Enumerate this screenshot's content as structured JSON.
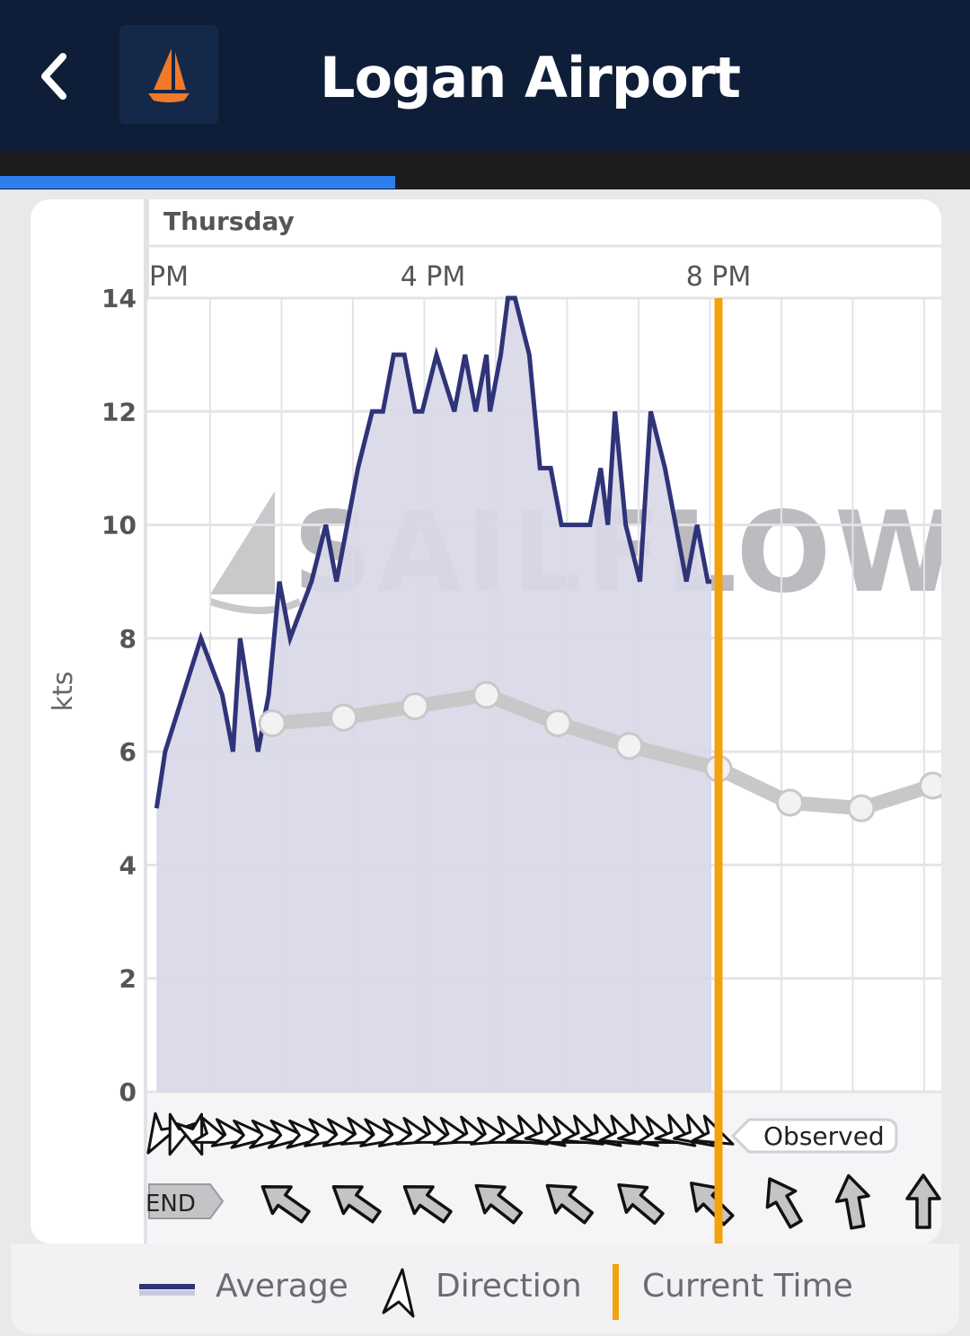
{
  "header": {
    "title": "Logan Airport",
    "back_icon": "chevron-left-icon",
    "logo_icon": "sailboat-icon",
    "colors": {
      "background": "#0f1e38",
      "progress": "#2d7ff0",
      "logo": "#f07a2a"
    }
  },
  "chart_data": {
    "type": "area",
    "day_label": "Thursday",
    "ylabel": "kts",
    "ylim": [
      0,
      14
    ],
    "yticks": [
      0,
      2,
      4,
      6,
      8,
      10,
      12,
      14
    ],
    "x_tick_labels": [
      {
        "label": "PM",
        "hour": 12
      },
      {
        "label": "4 PM",
        "hour": 16
      },
      {
        "label": "8 PM",
        "hour": 20
      }
    ],
    "watermark": "SAILFLOW",
    "current_time_hour": 20.0,
    "series": [
      {
        "name": "Average",
        "color": "#2f3478",
        "fill": "#d8d8e8",
        "x": [
          12.13,
          12.25,
          12.5,
          12.75,
          13.05,
          13.2,
          13.3,
          13.55,
          13.7,
          13.85,
          14.0,
          14.3,
          14.5,
          14.65,
          14.8,
          14.95,
          15.15,
          15.3,
          15.45,
          15.6,
          15.75,
          15.85,
          16.05,
          16.3,
          16.45,
          16.6,
          16.75,
          16.8,
          16.95,
          17.05,
          17.15,
          17.35,
          17.5,
          17.65,
          17.8,
          18.2,
          18.35,
          18.45,
          18.55,
          18.7,
          18.9,
          19.05,
          19.25,
          19.4,
          19.55,
          19.7,
          19.85,
          19.9
        ],
        "y": [
          5,
          6,
          7,
          8,
          7,
          6,
          8,
          6,
          7,
          9,
          8,
          9,
          10,
          9,
          10,
          11,
          12,
          12,
          13,
          13,
          12,
          12,
          13,
          12,
          13,
          12,
          13,
          12,
          13,
          14,
          14,
          13,
          11,
          11,
          10,
          10,
          11,
          10,
          12,
          10,
          9,
          12,
          11,
          10,
          9,
          10,
          9,
          9
        ]
      },
      {
        "name": "",
        "color": "#c8c8c8",
        "x": [
          13.75,
          14.75,
          15.75,
          16.75,
          17.75,
          18.75,
          20.0,
          21.0,
          22.0,
          23.0,
          23.3
        ],
        "y": [
          6.5,
          6.6,
          6.8,
          7.0,
          6.5,
          6.1,
          5.7,
          5.1,
          5.0,
          5.4,
          5.2
        ]
      }
    ],
    "observed_label": "Observed",
    "forecast_label": "END",
    "observed_directions_deg": [
      210,
      200,
      160,
      110,
      100,
      95,
      95,
      95,
      95,
      100,
      100,
      105,
      100,
      100,
      105,
      110,
      105,
      110,
      105,
      110,
      115,
      120,
      110,
      115,
      120,
      115,
      120,
      110,
      120,
      120,
      115
    ],
    "forecast_directions_deg": [
      125,
      125,
      125,
      128,
      128,
      130,
      135,
      150,
      170,
      180
    ],
    "legend": {
      "average": "Average",
      "direction": "Direction",
      "current_time": "Current Time"
    },
    "colors": {
      "current_time": "#f2a20c",
      "grid": "#e4e4e8"
    }
  }
}
